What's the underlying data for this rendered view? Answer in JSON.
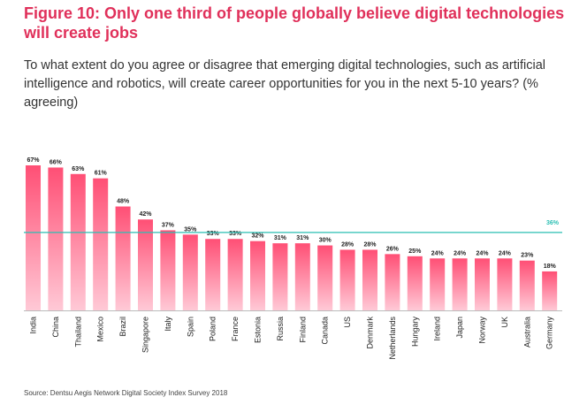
{
  "title": "Figure 10: Only one third of people globally believe digital technologies will create jobs",
  "subtitle": "To what extent do you agree or disagree that emerging digital technologies, such as artificial intelligence and robotics, will create career opportunities for you in the next 5-10 years? (% agreeing)",
  "source": "Source: Dentsu Aegis Network Digital Society Index Survey 2018",
  "chart_data": {
    "type": "bar",
    "categories": [
      "India",
      "China",
      "Thailand",
      "Mexico",
      "Brazil",
      "Singapore",
      "Italy",
      "Spain",
      "Poland",
      "France",
      "Estonia",
      "Russia",
      "Finland",
      "Canada",
      "US",
      "Denmark",
      "Netherlands",
      "Hungary",
      "Ireland",
      "Japan",
      "Norway",
      "UK",
      "Australia",
      "Germany"
    ],
    "values": [
      67,
      66,
      63,
      61,
      48,
      42,
      37,
      35,
      33,
      33,
      32,
      31,
      31,
      30,
      28,
      28,
      26,
      25,
      24,
      24,
      24,
      24,
      23,
      18
    ],
    "value_suffix": "%",
    "reference_line": {
      "value": 36,
      "label": "36%"
    },
    "ylim": [
      0,
      70
    ],
    "grid": false,
    "bar_color_top": "#ff4f75",
    "bar_color_bottom": "#ffc9d6",
    "reference_line_color": "#2bbfb3"
  }
}
